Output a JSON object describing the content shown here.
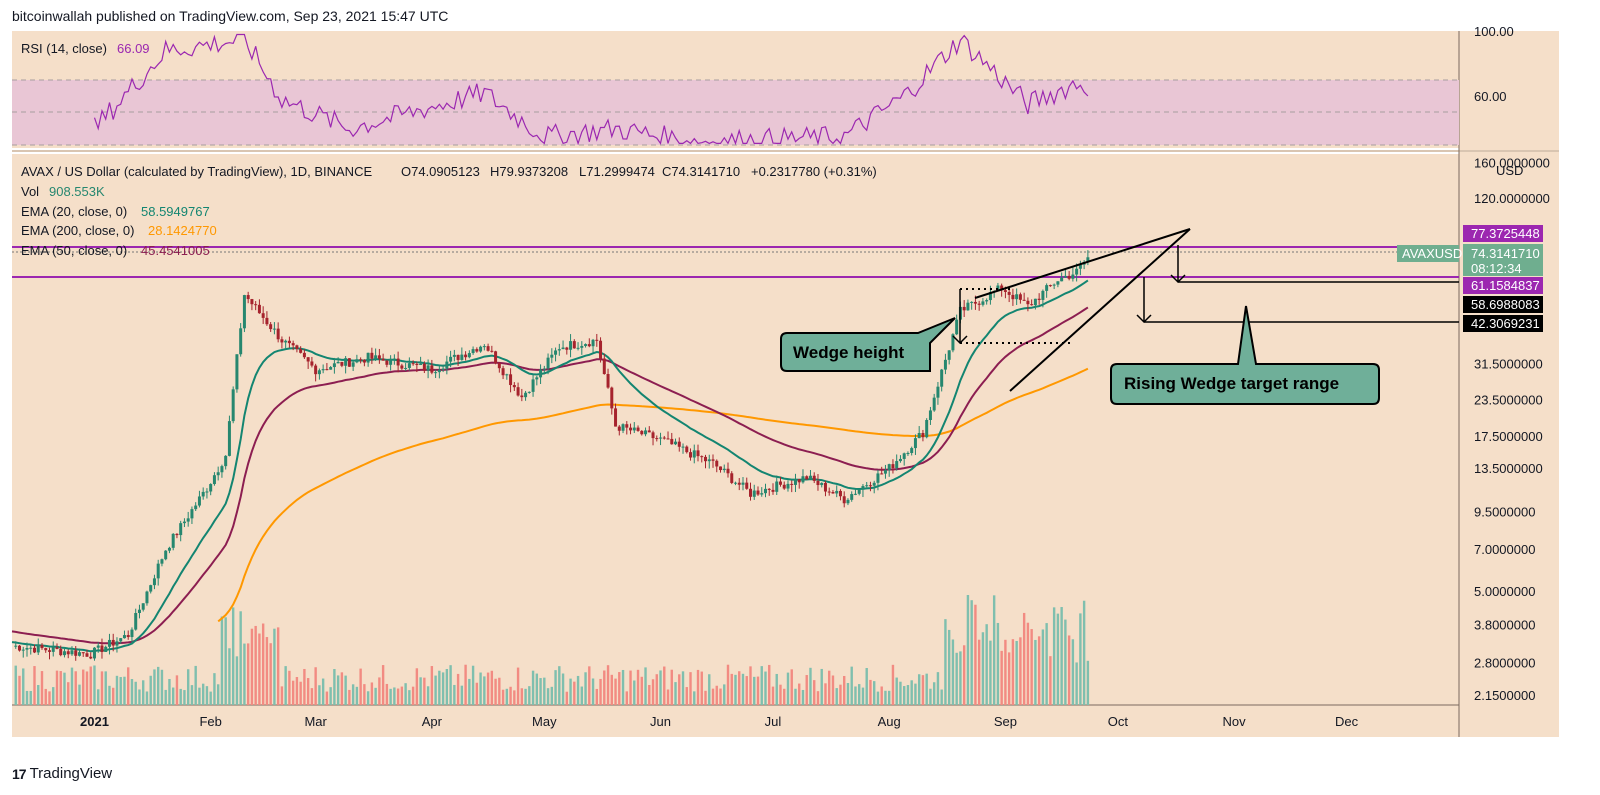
{
  "header": {
    "text": "bitcoinwallah published on TradingView.com, Sep 23, 2021 15:47 UTC"
  },
  "footer": {
    "logo": "17",
    "brand": "TradingView"
  },
  "colors": {
    "background": "#f5dfc9",
    "rsi_band": "#e9c6d5",
    "rsi_line": "#9b27b0",
    "ema20": "#138571",
    "ema50": "#8c1e51",
    "ema200": "#ff9800",
    "candle_up": "#26876f",
    "candle_down": "#a6232d",
    "vol_up": "#7fbfae",
    "vol_down": "#f28b82",
    "resistance": "#9c27b0",
    "annotation_fill": "#6faf99"
  },
  "rsi_pane": {
    "label": "RSI (14, close)",
    "value": "66.09",
    "axis_labels": [
      "100.00",
      "60.00"
    ]
  },
  "price_pane": {
    "symbol_line": "AVAX / US Dollar (calculated by TradingView), 1D, BINANCE",
    "open": "O74.0905123",
    "high": "H79.9373208",
    "low": "L71.2999474",
    "close": "C74.3141710",
    "change": "+0.2317780 (+0.31%)",
    "vol_label": "Vol",
    "vol_value": "908.553K",
    "ema20_label": "EMA (20, close, 0)",
    "ema20_value": "58.5949767",
    "ema200_label": "EMA (200, close, 0)",
    "ema200_value": "28.1424770",
    "ema50_label": "EMA (50, close, 0)",
    "ema50_value": "45.4541005",
    "currency": "USD",
    "price_ticks": [
      "160.0000000",
      "120.0000000",
      "31.5000000",
      "23.5000000",
      "17.5000000",
      "13.5000000",
      "9.5000000",
      "7.0000000",
      "5.0000000",
      "3.8000000",
      "2.8000000",
      "2.1500000"
    ],
    "tags": {
      "upper_resistance": "77.3725448",
      "symbol": "AVAXUSD",
      "last_price": "74.3141710",
      "countdown": "08:12:34",
      "lower_resistance": "61.1584837",
      "ema20": "58.6988083",
      "target": "42.3069231"
    },
    "time_labels": [
      "2021",
      "Feb",
      "Mar",
      "Apr",
      "May",
      "Jun",
      "Jul",
      "Aug",
      "Sep",
      "Oct",
      "Nov",
      "Dec"
    ]
  },
  "annotations": {
    "wedge_height": "Wedge height",
    "target_range": "Rising Wedge target range"
  },
  "chart_data": {
    "type": "candlestick",
    "title": "AVAX / US Dollar (calculated by TradingView), 1D, BINANCE",
    "x_range": [
      "2020-12-10",
      "2021-12-31"
    ],
    "y_scale": "log",
    "ylim": [
      2.0,
      170
    ],
    "series": [
      {
        "name": "AVAX / US Dollar",
        "description": "approximate daily closes read at milestone dates",
        "points": [
          [
            "2020-12-10",
            3.2
          ],
          [
            "2020-12-31",
            3.0
          ],
          [
            "2021-01-10",
            3.5
          ],
          [
            "2021-01-20",
            7.0
          ],
          [
            "2021-01-31",
            11.5
          ],
          [
            "2021-02-05",
            15.0
          ],
          [
            "2021-02-10",
            55.0
          ],
          [
            "2021-02-20",
            38.0
          ],
          [
            "2021-03-01",
            30.0
          ],
          [
            "2021-03-15",
            33.0
          ],
          [
            "2021-04-01",
            30.0
          ],
          [
            "2021-04-15",
            37.0
          ],
          [
            "2021-04-25",
            24.0
          ],
          [
            "2021-05-05",
            36.0
          ],
          [
            "2021-05-15",
            38.0
          ],
          [
            "2021-05-20",
            19.0
          ],
          [
            "2021-06-01",
            17.0
          ],
          [
            "2021-06-15",
            14.0
          ],
          [
            "2021-06-25",
            11.0
          ],
          [
            "2021-07-10",
            12.5
          ],
          [
            "2021-07-20",
            10.5
          ],
          [
            "2021-08-01",
            13.5
          ],
          [
            "2021-08-10",
            18.0
          ],
          [
            "2021-08-20",
            48.0
          ],
          [
            "2021-08-31",
            58.0
          ],
          [
            "2021-09-07",
            50.0
          ],
          [
            "2021-09-15",
            62.0
          ],
          [
            "2021-09-20",
            66.0
          ],
          [
            "2021-09-23",
            74.3
          ]
        ]
      },
      {
        "name": "EMA (20, close, 0)",
        "value": 58.5949767
      },
      {
        "name": "EMA (50, close, 0)",
        "value": 45.4541005
      },
      {
        "name": "EMA (200, close, 0)",
        "value": 28.142477
      }
    ],
    "horizontal_levels": [
      77.3725448,
      61.1584837
    ],
    "target_levels": [
      61.1584837,
      42.3069231
    ],
    "rsi": {
      "name": "RSI (14, close)",
      "last": 66.09,
      "band": [
        30,
        70
      ],
      "points": [
        [
          "2021-01-01",
          40
        ],
        [
          "2021-01-20",
          88
        ],
        [
          "2021-02-10",
          95
        ],
        [
          "2021-02-20",
          58
        ],
        [
          "2021-03-10",
          40
        ],
        [
          "2021-04-15",
          62
        ],
        [
          "2021-05-01",
          35
        ],
        [
          "2021-05-20",
          40
        ],
        [
          "2021-06-10",
          32
        ],
        [
          "2021-07-20",
          35
        ],
        [
          "2021-08-05",
          60
        ],
        [
          "2021-08-20",
          95
        ],
        [
          "2021-09-07",
          55
        ],
        [
          "2021-09-20",
          68
        ],
        [
          "2021-09-23",
          66.09
        ]
      ]
    },
    "legend_position": "top-left",
    "grid": false
  }
}
